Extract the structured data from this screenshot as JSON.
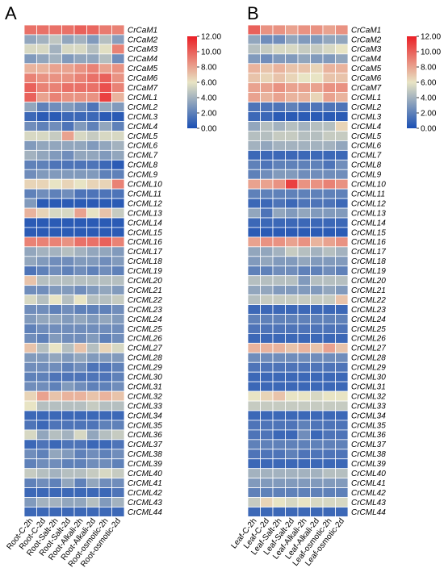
{
  "chart_data": [
    {
      "type": "heatmap",
      "panel_label": "A",
      "columns": [
        "Root-C-2h",
        "Root-C-2d",
        "Root-Salt-2h",
        "Root-Salt-2d",
        "Root-Alkali-2h",
        "Root-Alkali-2d",
        "Root-osmotic-2h",
        "Root-osmotic-2d"
      ],
      "rows": [
        "CrCaM1",
        "CrCaM2",
        "CrCaM3",
        "CrCaM4",
        "CrCaM5",
        "CrCaM6",
        "CrCaM7",
        "CrCML1",
        "CrCML2",
        "CrCML3",
        "CrCML4",
        "CrCML5",
        "CrCML6",
        "CrCML7",
        "CrCML8",
        "CrCML9",
        "CrCML10",
        "CrCML11",
        "CrCML12",
        "CrCML13",
        "CrCML14",
        "CrCML15",
        "CrCML16",
        "CrCML17",
        "CrCML18",
        "CrCML19",
        "CrCML20",
        "CrCML21",
        "CrCML22",
        "CrCML23",
        "CrCML24",
        "CrCML25",
        "CrCML26",
        "CrCML27",
        "CrCML28",
        "CrCML29",
        "CrCML30",
        "CrCML31",
        "CrCML32",
        "CrCML33",
        "CrCML34",
        "CrCML35",
        "CrCML36",
        "CrCML37",
        "CrCML38",
        "CrCML39",
        "CrCML40",
        "CrCML41",
        "CrCML42",
        "CrCML43",
        "CrCML44"
      ],
      "values": [
        [
          9.5,
          9.5,
          9.5,
          9.5,
          10.0,
          9.8,
          9.2,
          9.0
        ],
        [
          3.5,
          4.0,
          4.8,
          3.5,
          4.0,
          3.0,
          4.5,
          3.2
        ],
        [
          5.5,
          5.5,
          4.0,
          5.5,
          5.5,
          4.5,
          5.8,
          9.0
        ],
        [
          3.0,
          3.5,
          4.0,
          3.0,
          3.5,
          3.5,
          4.5,
          2.5
        ],
        [
          7.5,
          7.5,
          8.0,
          8.0,
          8.5,
          9.0,
          8.0,
          8.5
        ],
        [
          9.0,
          8.5,
          8.5,
          8.5,
          9.0,
          9.5,
          10.0,
          8.5
        ],
        [
          10.0,
          9.0,
          9.0,
          9.5,
          9.5,
          9.5,
          10.5,
          9.0
        ],
        [
          10.0,
          8.0,
          9.0,
          8.5,
          8.5,
          8.5,
          11.0,
          7.5
        ],
        [
          3.5,
          2.0,
          2.5,
          3.0,
          2.5,
          1.5,
          3.5,
          3.0
        ],
        [
          1.0,
          0.5,
          0.5,
          1.0,
          1.0,
          1.0,
          0.5,
          0.5
        ],
        [
          2.5,
          2.0,
          2.5,
          1.5,
          3.0,
          2.0,
          3.5,
          2.0
        ],
        [
          5.5,
          5.5,
          5.0,
          8.0,
          5.5,
          5.0,
          5.5,
          5.5
        ],
        [
          3.0,
          3.5,
          3.5,
          3.5,
          3.5,
          3.0,
          3.5,
          4.0
        ],
        [
          4.0,
          3.5,
          3.0,
          2.5,
          3.5,
          3.5,
          3.0,
          3.5
        ],
        [
          2.0,
          2.0,
          1.5,
          1.5,
          1.5,
          1.5,
          1.0,
          0.5
        ],
        [
          2.5,
          3.0,
          3.0,
          3.0,
          3.0,
          3.0,
          2.0,
          2.0
        ],
        [
          6.5,
          6.5,
          6.0,
          6.5,
          6.0,
          6.5,
          6.5,
          9.0
        ],
        [
          2.0,
          2.5,
          2.0,
          2.5,
          1.5,
          1.5,
          1.5,
          1.5
        ],
        [
          3.0,
          0.5,
          0.5,
          0.5,
          0.5,
          0.5,
          0.5,
          0.5
        ],
        [
          7.5,
          6.5,
          5.5,
          5.5,
          8.0,
          6.0,
          7.0,
          5.0
        ],
        [
          0.5,
          0.5,
          0.5,
          0.5,
          0.5,
          0.5,
          0.5,
          0.5
        ],
        [
          0.5,
          0.5,
          0.5,
          0.5,
          0.5,
          0.5,
          0.5,
          0.5
        ],
        [
          9.0,
          9.0,
          9.0,
          8.5,
          9.5,
          9.5,
          10.0,
          9.0
        ],
        [
          3.5,
          4.0,
          4.0,
          4.5,
          4.0,
          3.5,
          3.5,
          3.0
        ],
        [
          3.5,
          3.0,
          2.5,
          2.5,
          3.0,
          3.0,
          2.5,
          3.0
        ],
        [
          1.5,
          2.0,
          2.5,
          2.0,
          2.5,
          2.0,
          2.5,
          2.0
        ],
        [
          7.0,
          4.5,
          4.5,
          4.5,
          4.5,
          4.5,
          4.5,
          4.5
        ],
        [
          2.5,
          2.5,
          3.0,
          3.0,
          2.5,
          3.0,
          3.5,
          3.0
        ],
        [
          5.5,
          4.5,
          6.0,
          4.5,
          6.0,
          4.5,
          4.5,
          5.0
        ],
        [
          2.5,
          2.5,
          2.0,
          2.5,
          2.0,
          2.0,
          2.0,
          2.5
        ],
        [
          3.0,
          3.5,
          3.5,
          3.0,
          3.5,
          3.0,
          3.5,
          3.0
        ],
        [
          2.0,
          2.5,
          2.5,
          2.5,
          2.5,
          2.5,
          2.5,
          2.5
        ],
        [
          2.5,
          2.0,
          3.0,
          2.5,
          2.5,
          3.0,
          2.0,
          2.5
        ],
        [
          7.0,
          4.5,
          6.0,
          4.5,
          7.0,
          4.5,
          6.5,
          5.5
        ],
        [
          3.0,
          3.0,
          3.5,
          3.0,
          3.5,
          3.0,
          3.0,
          3.0
        ],
        [
          2.5,
          2.5,
          2.5,
          2.0,
          2.5,
          1.5,
          1.5,
          2.0
        ],
        [
          2.0,
          2.0,
          1.5,
          1.5,
          1.5,
          1.5,
          1.5,
          2.0
        ],
        [
          2.5,
          2.5,
          2.0,
          3.0,
          2.5,
          2.0,
          2.0,
          2.5
        ],
        [
          6.5,
          8.0,
          7.0,
          7.5,
          7.5,
          7.0,
          7.5,
          7.0
        ],
        [
          6.0,
          4.5,
          4.5,
          4.5,
          4.5,
          5.0,
          4.5,
          4.5
        ],
        [
          1.0,
          1.0,
          1.0,
          1.0,
          1.0,
          1.0,
          1.0,
          1.0
        ],
        [
          1.5,
          1.0,
          1.5,
          1.5,
          1.5,
          1.5,
          2.0,
          2.0
        ],
        [
          5.5,
          3.5,
          4.5,
          4.0,
          5.5,
          3.5,
          4.5,
          5.0
        ],
        [
          1.0,
          1.5,
          1.0,
          1.5,
          1.5,
          1.0,
          1.0,
          1.5
        ],
        [
          2.5,
          2.0,
          3.5,
          3.0,
          2.0,
          2.5,
          2.0,
          2.5
        ],
        [
          2.0,
          2.5,
          2.5,
          2.0,
          2.0,
          2.5,
          2.5,
          2.0
        ],
        [
          5.0,
          4.5,
          4.0,
          4.5,
          4.5,
          5.0,
          5.5,
          5.0
        ],
        [
          2.0,
          2.5,
          2.0,
          3.5,
          2.0,
          3.5,
          2.5,
          2.5
        ],
        [
          1.0,
          1.0,
          1.0,
          1.0,
          1.0,
          1.0,
          1.0,
          1.5
        ],
        [
          3.0,
          4.0,
          4.0,
          3.5,
          3.5,
          4.5,
          3.0,
          4.0
        ],
        [
          1.0,
          1.0,
          1.0,
          1.0,
          1.0,
          1.0,
          1.0,
          1.0
        ]
      ],
      "colorbar": {
        "min": 0,
        "max": 12,
        "ticks": [
          "12.00",
          "10.00",
          "8.00",
          "6.00",
          "4.00",
          "2.00",
          "0.00"
        ]
      },
      "colors": {
        "low": "#1a4fb4",
        "mid": "#e8e4c4",
        "high": "#ea1f26"
      }
    },
    {
      "type": "heatmap",
      "panel_label": "B",
      "columns": [
        "Leaf-C-2h",
        "Leaf-C-2d",
        "Leaf-Salt-2h",
        "Leaf-Salt-2d",
        "Leaf-Alkali-2h",
        "Leaf-Alkali-2d",
        "Leaf-osmotic-2h",
        "Leaf-osmotic-2d"
      ],
      "rows": [
        "CrCaM1",
        "CrCaM2",
        "CrCaM3",
        "CrCaM4",
        "CrCaM5",
        "CrCaM6",
        "CrCaM7",
        "CrCML1",
        "CrCML2",
        "CrCML3",
        "CrCML4",
        "CrCML5",
        "CrCML6",
        "CrCML7",
        "CrCML8",
        "CrCML9",
        "CrCML10",
        "CrCML11",
        "CrCML12",
        "CrCML13",
        "CrCML14",
        "CrCML15",
        "CrCML16",
        "CrCML17",
        "CrCML18",
        "CrCML19",
        "CrCML20",
        "CrCML21",
        "CrCML22",
        "CrCML23",
        "CrCML24",
        "CrCML25",
        "CrCML26",
        "CrCML27",
        "CrCML28",
        "CrCML29",
        "CrCML30",
        "CrCML31",
        "CrCML32",
        "CrCML33",
        "CrCML34",
        "CrCML35",
        "CrCML36",
        "CrCML37",
        "CrCML38",
        "CrCML39",
        "CrCML40",
        "CrCML41",
        "CrCML42",
        "CrCML43",
        "CrCML44"
      ],
      "values": [
        [
          10.0,
          8.5,
          8.5,
          8.0,
          8.5,
          8.5,
          8.0,
          8.5
        ],
        [
          3.5,
          2.5,
          2.5,
          3.5,
          3.0,
          3.0,
          3.5,
          3.5
        ],
        [
          4.5,
          5.0,
          5.5,
          5.5,
          5.0,
          5.0,
          5.5,
          6.0
        ],
        [
          3.0,
          2.5,
          3.0,
          3.0,
          3.5,
          3.0,
          3.0,
          3.5
        ],
        [
          7.5,
          7.0,
          7.5,
          7.0,
          7.0,
          6.5,
          7.5,
          7.5
        ],
        [
          7.0,
          6.5,
          7.0,
          6.5,
          6.0,
          6.0,
          7.0,
          7.0
        ],
        [
          8.0,
          8.0,
          8.5,
          8.0,
          8.0,
          8.0,
          8.5,
          8.5
        ],
        [
          8.0,
          7.5,
          8.0,
          7.5,
          7.5,
          6.5,
          8.0,
          7.5
        ],
        [
          1.5,
          1.5,
          1.5,
          2.0,
          1.5,
          1.5,
          1.5,
          1.5
        ],
        [
          1.0,
          1.0,
          0.5,
          0.5,
          0.5,
          0.5,
          0.5,
          0.5
        ],
        [
          3.5,
          4.5,
          4.0,
          4.5,
          4.0,
          4.5,
          4.5,
          6.5
        ],
        [
          4.5,
          4.5,
          5.0,
          5.0,
          4.5,
          4.5,
          5.0,
          5.0
        ],
        [
          4.0,
          3.5,
          4.0,
          4.0,
          4.0,
          4.0,
          4.0,
          3.5
        ],
        [
          1.0,
          1.0,
          1.0,
          1.0,
          1.0,
          1.0,
          1.0,
          1.0
        ],
        [
          2.0,
          1.5,
          2.0,
          2.0,
          2.0,
          2.0,
          1.5,
          2.5
        ],
        [
          2.0,
          2.5,
          3.0,
          3.0,
          2.5,
          2.5,
          2.5,
          2.5
        ],
        [
          8.0,
          8.0,
          8.5,
          11.0,
          8.5,
          8.5,
          9.0,
          8.5
        ],
        [
          2.0,
          2.0,
          2.0,
          2.0,
          2.0,
          2.0,
          2.0,
          2.0
        ],
        [
          1.0,
          1.0,
          1.5,
          1.0,
          1.5,
          1.5,
          1.5,
          1.0
        ],
        [
          3.5,
          1.5,
          3.5,
          3.0,
          3.5,
          3.0,
          3.0,
          3.0
        ],
        [
          1.0,
          1.0,
          1.0,
          1.0,
          1.0,
          1.0,
          1.0,
          1.0
        ],
        [
          0.5,
          0.5,
          0.5,
          0.5,
          0.5,
          0.5,
          0.5,
          0.5
        ],
        [
          8.0,
          8.5,
          8.5,
          8.0,
          8.5,
          7.5,
          8.0,
          8.5
        ],
        [
          3.5,
          3.5,
          4.0,
          5.0,
          4.5,
          4.0,
          4.5,
          4.0
        ],
        [
          3.0,
          3.5,
          3.0,
          3.0,
          3.5,
          3.0,
          3.0,
          3.0
        ],
        [
          2.0,
          2.0,
          2.5,
          2.5,
          2.0,
          2.0,
          2.5,
          2.0
        ],
        [
          4.5,
          4.5,
          4.5,
          4.5,
          3.0,
          4.5,
          4.5,
          4.5
        ],
        [
          3.5,
          3.5,
          3.0,
          3.0,
          3.0,
          3.0,
          3.5,
          3.0
        ],
        [
          4.5,
          5.0,
          5.0,
          5.0,
          5.0,
          5.0,
          5.0,
          7.0
        ],
        [
          1.0,
          1.0,
          1.0,
          1.0,
          1.0,
          1.0,
          1.0,
          1.0
        ],
        [
          2.0,
          2.0,
          2.0,
          2.0,
          2.0,
          2.0,
          2.0,
          2.0
        ],
        [
          1.5,
          1.5,
          1.5,
          1.5,
          1.5,
          1.5,
          1.5,
          1.5
        ],
        [
          1.0,
          1.0,
          1.0,
          1.0,
          1.0,
          1.0,
          1.0,
          1.0
        ],
        [
          7.5,
          7.5,
          7.5,
          7.0,
          7.5,
          7.0,
          8.0,
          7.0
        ],
        [
          2.5,
          2.5,
          2.5,
          2.5,
          2.5,
          2.5,
          2.5,
          2.5
        ],
        [
          1.5,
          1.5,
          1.5,
          1.5,
          1.5,
          1.5,
          1.5,
          1.5
        ],
        [
          1.0,
          1.0,
          1.0,
          1.0,
          1.0,
          1.0,
          1.0,
          1.0
        ],
        [
          1.0,
          1.0,
          1.0,
          1.0,
          1.0,
          1.0,
          1.0,
          1.0
        ],
        [
          6.0,
          6.5,
          7.0,
          6.0,
          6.0,
          5.5,
          6.0,
          6.0
        ],
        [
          5.0,
          5.0,
          5.0,
          5.0,
          5.0,
          5.0,
          5.0,
          5.0
        ],
        [
          1.0,
          1.0,
          1.0,
          1.0,
          1.0,
          1.0,
          1.0,
          1.0
        ],
        [
          1.5,
          1.5,
          1.5,
          1.5,
          2.0,
          1.5,
          1.5,
          1.5
        ],
        [
          1.5,
          1.5,
          1.0,
          1.0,
          2.5,
          1.0,
          1.5,
          1.5
        ],
        [
          2.0,
          2.0,
          2.0,
          2.0,
          2.0,
          2.0,
          2.0,
          2.0
        ],
        [
          1.5,
          1.5,
          1.5,
          2.0,
          1.5,
          1.5,
          1.5,
          1.5
        ],
        [
          1.0,
          1.0,
          1.0,
          1.0,
          1.0,
          1.0,
          1.0,
          1.0
        ],
        [
          4.0,
          4.0,
          4.0,
          4.0,
          4.0,
          4.0,
          4.5,
          4.5
        ],
        [
          3.0,
          3.0,
          3.0,
          3.0,
          3.0,
          3.0,
          3.0,
          3.0
        ],
        [
          2.0,
          2.0,
          2.0,
          2.0,
          2.0,
          2.0,
          2.0,
          2.0
        ],
        [
          5.0,
          6.5,
          6.0,
          5.5,
          6.0,
          5.5,
          5.5,
          5.5
        ],
        [
          1.0,
          1.0,
          1.0,
          1.0,
          1.0,
          1.0,
          1.0,
          1.0
        ]
      ],
      "colorbar": {
        "min": 0,
        "max": 12,
        "ticks": [
          "12.00",
          "10.00",
          "8.00",
          "6.00",
          "4.00",
          "2.00",
          "0.00"
        ]
      },
      "colors": {
        "low": "#1a4fb4",
        "mid": "#e8e4c4",
        "high": "#ea1f26"
      }
    }
  ]
}
